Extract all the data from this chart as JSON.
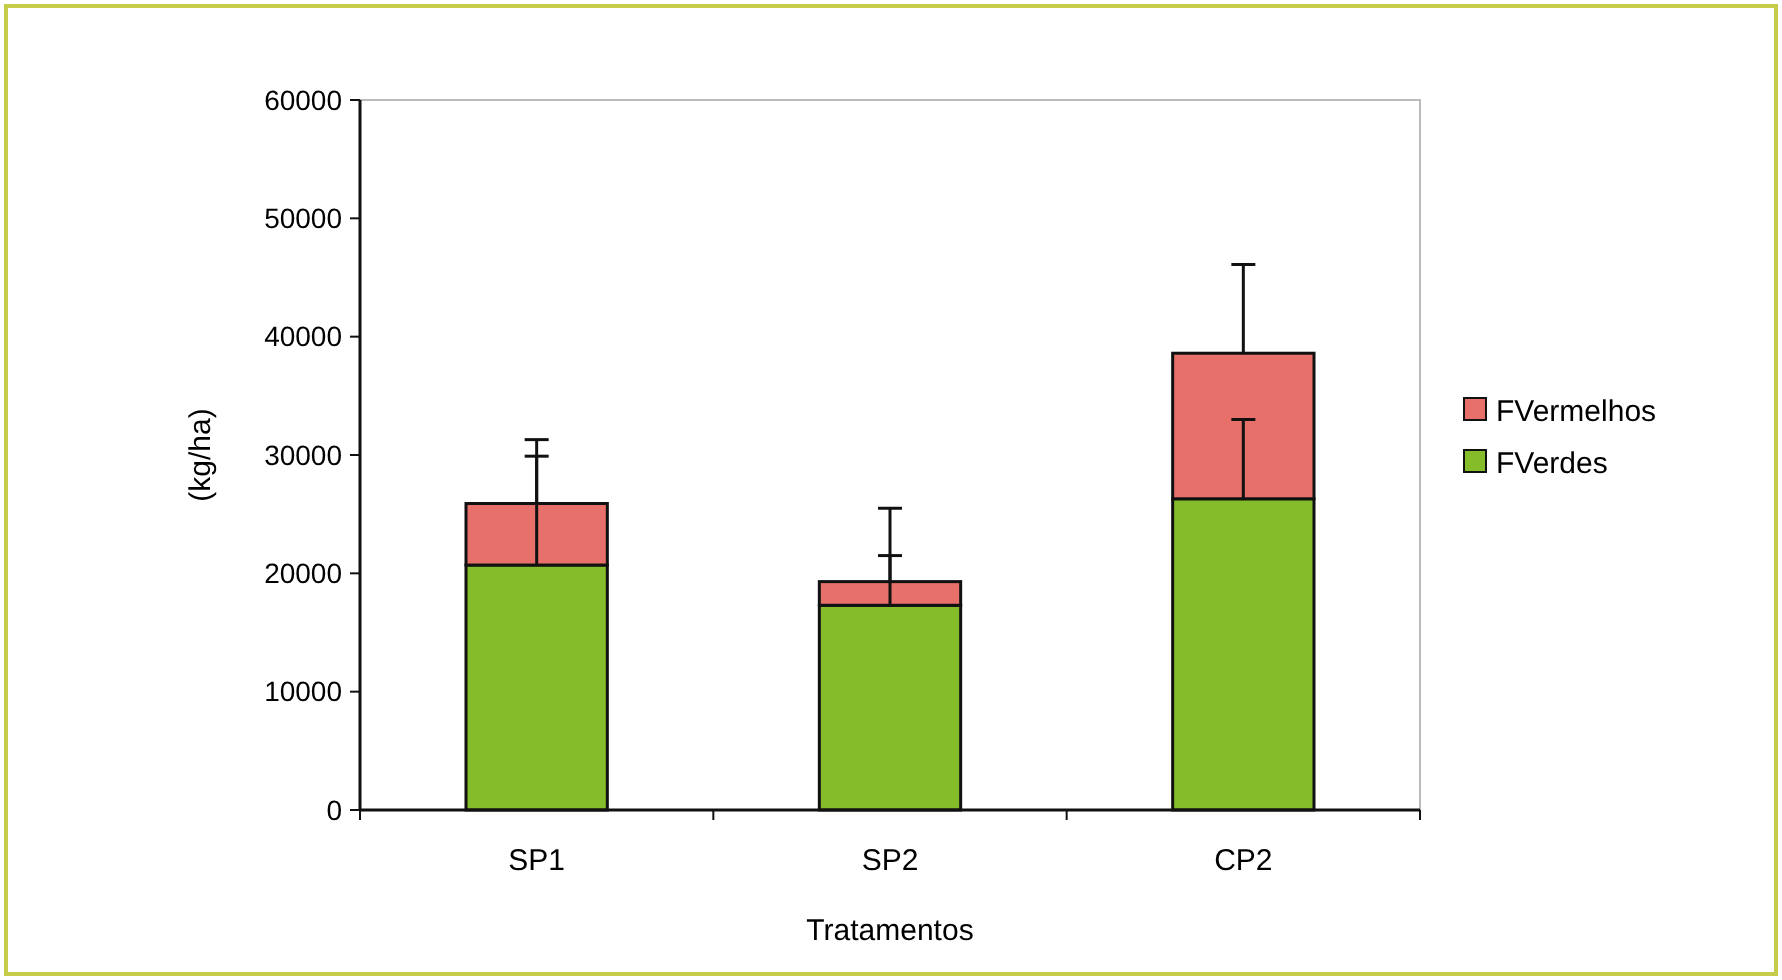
{
  "chart_data": {
    "type": "bar",
    "stacked": true,
    "xlabel": "Tratamentos",
    "ylabel": "(kg/ha)",
    "categories": [
      "SP1",
      "SP2",
      "CP2"
    ],
    "series": [
      {
        "name": "FVerdes",
        "color": "#84bc2a",
        "values": [
          20700,
          17300,
          26300
        ],
        "errors": [
          [
            20700,
            29900
          ],
          [
            17300,
            21500
          ],
          [
            26300,
            33000
          ]
        ]
      },
      {
        "name": "FVermelhos",
        "color": "#e8706a",
        "values": [
          5200,
          2000,
          12300
        ],
        "errors": [
          [
            25900,
            31300
          ],
          [
            19300,
            25500
          ],
          [
            38600,
            46100
          ]
        ]
      }
    ],
    "ylim": [
      0,
      60000
    ],
    "yticks": [
      0,
      10000,
      20000,
      30000,
      40000,
      50000,
      60000
    ],
    "grid": false,
    "legend": "right"
  }
}
